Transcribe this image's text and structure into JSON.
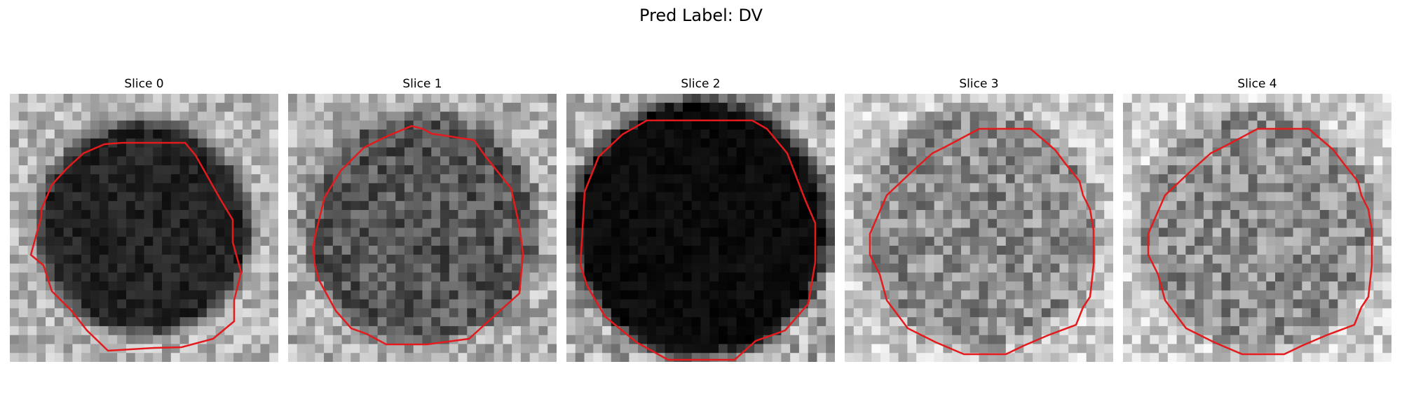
{
  "figure": {
    "title": "Pred Label: DV"
  },
  "panels": [
    {
      "title": "Slice 0",
      "tone": "dark",
      "contour_color": "#e41a1c"
    },
    {
      "title": "Slice 1",
      "tone": "mid",
      "contour_color": "#e41a1c"
    },
    {
      "title": "Slice 2",
      "tone": "black",
      "contour_color": "#e41a1c"
    },
    {
      "title": "Slice 3",
      "tone": "gray",
      "contour_color": "#e41a1c"
    },
    {
      "title": "Slice 4",
      "tone": "gray",
      "contour_color": "#e41a1c"
    }
  ]
}
